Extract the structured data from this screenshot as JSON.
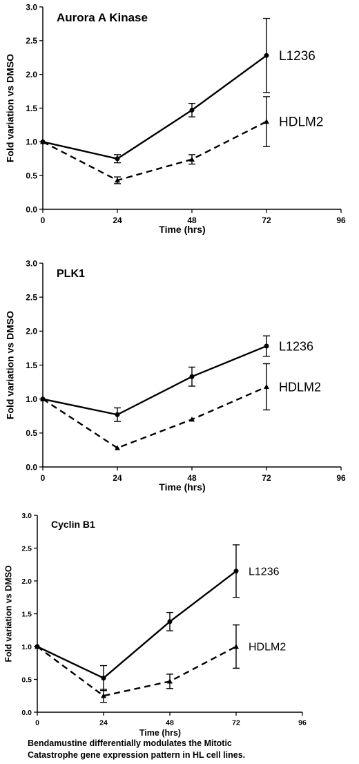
{
  "chart_data": [
    {
      "type": "line",
      "title": "Aurora A Kinase",
      "xlabel": "Time (hrs)",
      "ylabel": "Fold variation vs DMSO",
      "xlim": [
        0,
        96
      ],
      "ylim": [
        0,
        3
      ],
      "xticks": [
        0,
        24,
        48,
        72,
        96
      ],
      "yticks": [
        0.0,
        0.5,
        1.0,
        1.5,
        2.0,
        2.5,
        3.0
      ],
      "ytick_labels": [
        "0.0",
        "0.5",
        "1.0",
        "1.5",
        "2.0",
        "2.5",
        "3.0"
      ],
      "series": [
        {
          "name": "L1236",
          "style": "solid",
          "marker": "circle",
          "x": [
            0,
            24,
            48,
            72
          ],
          "y": [
            1.0,
            0.75,
            1.47,
            2.28
          ],
          "err": [
            0,
            0.06,
            0.1,
            0.55
          ]
        },
        {
          "name": "HDLM2",
          "style": "dashed",
          "marker": "triangle",
          "x": [
            0,
            24,
            48,
            72
          ],
          "y": [
            1.0,
            0.43,
            0.74,
            1.3
          ],
          "err": [
            0,
            0.05,
            0.07,
            0.37
          ]
        }
      ]
    },
    {
      "type": "line",
      "title": "PLK1",
      "xlabel": "Time (hrs)",
      "ylabel": "Fold variation vs DMSO",
      "xlim": [
        0,
        96
      ],
      "ylim": [
        0,
        3
      ],
      "xticks": [
        0,
        24,
        48,
        72,
        96
      ],
      "yticks": [
        0.0,
        0.5,
        1.0,
        1.5,
        2.0,
        2.5,
        3.0
      ],
      "ytick_labels": [
        "0.0",
        "0.5",
        "1.0",
        "1.5",
        "2.0",
        "2.5",
        "3.0"
      ],
      "series": [
        {
          "name": "L1236",
          "style": "solid",
          "marker": "circle",
          "x": [
            0,
            24,
            48,
            72
          ],
          "y": [
            1.0,
            0.77,
            1.33,
            1.78
          ],
          "err": [
            0,
            0.1,
            0.14,
            0.15
          ]
        },
        {
          "name": "HDLM2",
          "style": "dashed",
          "marker": "triangle",
          "x": [
            0,
            24,
            48,
            72
          ],
          "y": [
            1.0,
            0.28,
            0.7,
            1.18
          ],
          "err": [
            0,
            0,
            0,
            0.34
          ]
        }
      ]
    },
    {
      "type": "line",
      "title": "Cyclin B1",
      "xlabel": "Time (hrs)",
      "ylabel": "Fold variation vs DMSO",
      "xlim": [
        0,
        96
      ],
      "ylim": [
        0,
        3
      ],
      "xticks": [
        0,
        24,
        48,
        72,
        96
      ],
      "yticks": [
        0.0,
        0.5,
        1.0,
        1.5,
        2.0,
        2.5,
        3.0
      ],
      "ytick_labels": [
        "0.0",
        "0.5",
        "1.0",
        "1.5",
        "2.0",
        "2.5",
        "3.0"
      ],
      "series": [
        {
          "name": "L1236",
          "style": "solid",
          "marker": "circle",
          "x": [
            0,
            24,
            48,
            72
          ],
          "y": [
            1.0,
            0.52,
            1.38,
            2.15
          ],
          "err": [
            0,
            0.19,
            0.14,
            0.4
          ]
        },
        {
          "name": "HDLM2",
          "style": "dashed",
          "marker": "triangle",
          "x": [
            0,
            24,
            48,
            72
          ],
          "y": [
            1.0,
            0.25,
            0.47,
            1.0
          ],
          "err": [
            0,
            0.1,
            0.11,
            0.33
          ]
        }
      ]
    }
  ],
  "caption": {
    "line1": "Bendamustine differentially modulates the Mitotic",
    "line2": "Catastrophe gene  expression pattern in HL cell lines."
  }
}
